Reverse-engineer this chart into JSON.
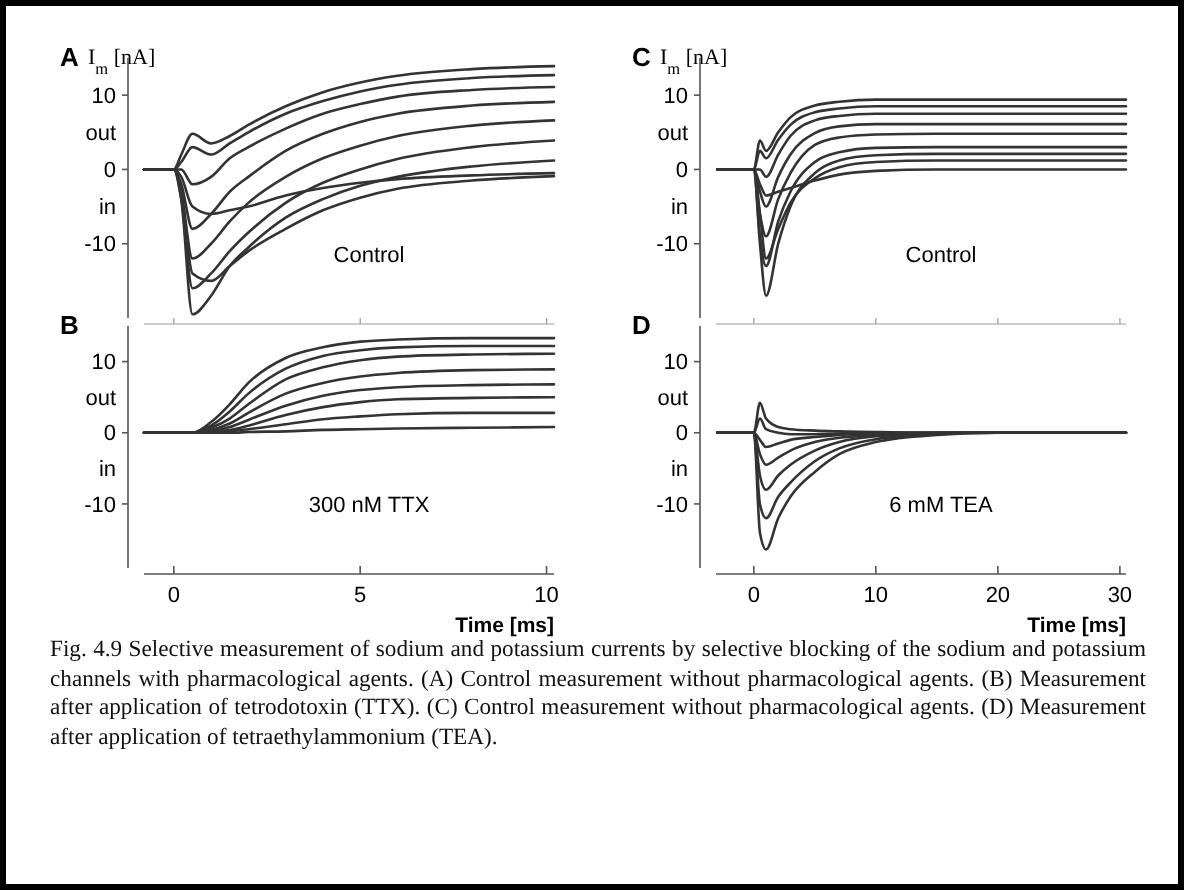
{
  "chart_data": [
    {
      "type": "line",
      "title": "A",
      "ylabel": "I$_{m}$ [nA]",
      "annotations": [
        "Control",
        "out",
        "in"
      ],
      "tick_labels": "y",
      "xlim": [
        -0.8,
        10.2
      ],
      "xticks": [
        0,
        5,
        10
      ],
      "ylim": [
        -20,
        15
      ],
      "yticks": [
        -10,
        0,
        10
      ],
      "x": [
        -0.8,
        0,
        0.2,
        0.5,
        1,
        1.5,
        2,
        3,
        4,
        5,
        6,
        8,
        10.2
      ],
      "series": [
        {
          "color": "#333333",
          "values": [
            0,
            0,
            2,
            4.8,
            3.5,
            4.5,
            6,
            8.5,
            10.4,
            11.7,
            12.6,
            13.5,
            13.9
          ]
        },
        {
          "color": "#333333",
          "values": [
            0,
            0,
            1,
            3,
            2,
            3.5,
            5,
            7.5,
            9.2,
            10.5,
            11.4,
            12.3,
            12.7
          ]
        },
        {
          "color": "#333333",
          "values": [
            0,
            0,
            0,
            -2,
            -1,
            1.5,
            3,
            5.5,
            7.5,
            8.8,
            9.8,
            10.7,
            11.1
          ]
        },
        {
          "color": "#333333",
          "values": [
            0,
            0,
            -2,
            -8,
            -6,
            -3,
            -1,
            2.5,
            4.8,
            6.4,
            7.5,
            8.6,
            9.1
          ]
        },
        {
          "color": "#333333",
          "values": [
            0,
            0,
            -3,
            -12,
            -10,
            -7,
            -4.5,
            -1,
            1.5,
            3.2,
            4.5,
            5.9,
            6.6
          ]
        },
        {
          "color": "#333333",
          "values": [
            0,
            0,
            -4,
            -16,
            -14,
            -11,
            -8.5,
            -4.5,
            -1.8,
            0,
            1.4,
            3,
            3.9
          ]
        },
        {
          "color": "#333333",
          "values": [
            0,
            0,
            -4,
            -19.5,
            -17,
            -13,
            -10.5,
            -6.5,
            -4,
            -2.2,
            -1,
            0.4,
            1.2
          ]
        },
        {
          "color": "#333333",
          "values": [
            0,
            0,
            -3,
            -14,
            -15,
            -13,
            -11,
            -8,
            -5.5,
            -3.8,
            -2.6,
            -1.5,
            -0.9
          ]
        },
        {
          "color": "#333333",
          "values": [
            0,
            0,
            -1,
            -5,
            -6,
            -5.5,
            -5,
            -3.5,
            -2.5,
            -1.8,
            -1.3,
            -0.8,
            -0.5
          ]
        }
      ]
    },
    {
      "type": "line",
      "title": "B",
      "xlabel": "Time [ms]",
      "annotations": [
        "300 nM TTX",
        "out",
        "in"
      ],
      "xlim": [
        -0.8,
        10.2
      ],
      "xticks": [
        0,
        5,
        10
      ],
      "ylim": [
        -19,
        15
      ],
      "yticks": [
        -10,
        0,
        10
      ],
      "x": [
        -0.8,
        0,
        0.5,
        1,
        1.5,
        2,
        3,
        4,
        5,
        6,
        8,
        10.2
      ],
      "series": [
        {
          "color": "#333333",
          "values": [
            0,
            0,
            0,
            1.5,
            4,
            7,
            10.5,
            12,
            12.8,
            13.1,
            13.3,
            13.3
          ]
        },
        {
          "color": "#333333",
          "values": [
            0,
            0,
            0,
            1,
            3,
            5.5,
            9,
            10.8,
            11.6,
            12,
            12.2,
            12.2
          ]
        },
        {
          "color": "#333333",
          "values": [
            0,
            0,
            0,
            0.7,
            2,
            4,
            7.5,
            9.2,
            10.2,
            10.7,
            11,
            11.1
          ]
        },
        {
          "color": "#333333",
          "values": [
            0,
            0,
            0,
            0.4,
            1.3,
            2.8,
            5.5,
            7,
            7.9,
            8.4,
            8.8,
            8.9
          ]
        },
        {
          "color": "#333333",
          "values": [
            0,
            0,
            0,
            0.2,
            0.8,
            1.8,
            3.8,
            5.2,
            6,
            6.4,
            6.7,
            6.8
          ]
        },
        {
          "color": "#333333",
          "values": [
            0,
            0,
            0,
            0.1,
            0.4,
            1,
            2.5,
            3.6,
            4.3,
            4.7,
            4.9,
            5
          ]
        },
        {
          "color": "#333333",
          "values": [
            0,
            0,
            0,
            0,
            0.2,
            0.5,
            1.2,
            1.9,
            2.3,
            2.6,
            2.8,
            2.8
          ]
        },
        {
          "color": "#333333",
          "values": [
            0,
            0,
            0,
            0,
            0,
            0.1,
            0.2,
            0.4,
            0.5,
            0.6,
            0.7,
            0.8
          ]
        }
      ]
    },
    {
      "type": "line",
      "title": "C",
      "ylabel": "I$_{m}$ [nA]",
      "annotations": [
        "Control",
        "out",
        "in"
      ],
      "tick_labels": "y",
      "xlim": [
        -3.1,
        30.5
      ],
      "xticks": [
        0,
        10,
        20,
        30
      ],
      "ylim": [
        -20,
        15
      ],
      "yticks": [
        -10,
        0,
        10
      ],
      "x": [
        -3,
        0,
        0.5,
        1,
        2,
        3,
        5,
        7,
        10,
        15,
        20,
        30.5
      ],
      "series": [
        {
          "color": "#333333",
          "values": [
            0,
            0,
            3.9,
            2.5,
            5,
            7,
            8.6,
            9.1,
            9.4,
            9.4,
            9.4,
            9.4
          ]
        },
        {
          "color": "#333333",
          "values": [
            0,
            0,
            2.5,
            1.5,
            4,
            6,
            7.7,
            8.2,
            8.5,
            8.5,
            8.5,
            8.5
          ]
        },
        {
          "color": "#333333",
          "values": [
            0,
            0,
            0,
            -1,
            2,
            4.5,
            6.6,
            7.2,
            7.5,
            7.5,
            7.5,
            7.5
          ]
        },
        {
          "color": "#333333",
          "values": [
            0,
            0,
            -3,
            -5,
            -1,
            2,
            4.9,
            5.8,
            6.1,
            6.1,
            6.1,
            6.1
          ]
        },
        {
          "color": "#333333",
          "values": [
            0,
            0,
            -6,
            -9,
            -4,
            -0.5,
            3.3,
            4.3,
            4.7,
            4.8,
            4.8,
            4.8
          ]
        },
        {
          "color": "#333333",
          "values": [
            0,
            0,
            -9,
            -13,
            -7,
            -3,
            1,
            2.3,
            2.9,
            3,
            3,
            3
          ]
        },
        {
          "color": "#333333",
          "values": [
            0,
            0,
            -10,
            -17,
            -10,
            -5,
            -0.5,
            1.2,
            1.9,
            2.1,
            2.1,
            2.1
          ]
        },
        {
          "color": "#333333",
          "values": [
            0,
            0,
            -6,
            -12,
            -8,
            -4.5,
            -1.2,
            0.3,
            1,
            1.2,
            1.2,
            1.2
          ]
        },
        {
          "color": "#333333",
          "values": [
            0,
            0,
            -2,
            -3.5,
            -3,
            -2.5,
            -1.5,
            -0.7,
            -0.2,
            0,
            0,
            0
          ]
        }
      ]
    },
    {
      "type": "line",
      "title": "D",
      "xlabel": "Time [ms]",
      "annotations": [
        "6 mM TEA",
        "out",
        "in"
      ],
      "xlim": [
        -3.1,
        30.5
      ],
      "xticks": [
        0,
        10,
        20,
        30
      ],
      "ylim": [
        -19,
        15
      ],
      "yticks": [
        -10,
        0,
        10
      ],
      "x": [
        -3,
        0,
        0.5,
        1,
        2,
        3,
        5,
        7,
        10,
        15,
        20,
        30.5
      ],
      "series": [
        {
          "color": "#333333",
          "values": [
            0,
            0,
            4.2,
            2,
            0.8,
            0.5,
            0.3,
            0.2,
            0.1,
            0,
            0,
            0
          ]
        },
        {
          "color": "#333333",
          "values": [
            0,
            0,
            2,
            0.5,
            0,
            -0.2,
            -0.2,
            -0.1,
            0,
            0,
            0,
            0
          ]
        },
        {
          "color": "#333333",
          "values": [
            0,
            0,
            -1,
            -2,
            -1.5,
            -1,
            -0.6,
            -0.3,
            -0.1,
            0,
            0,
            0
          ]
        },
        {
          "color": "#333333",
          "values": [
            0,
            0,
            -3,
            -4.5,
            -3.5,
            -2.5,
            -1.3,
            -0.7,
            -0.3,
            0,
            0,
            0
          ]
        },
        {
          "color": "#333333",
          "values": [
            0,
            0,
            -6,
            -8,
            -6,
            -4.5,
            -2.5,
            -1.3,
            -0.5,
            -0.1,
            0,
            0
          ]
        },
        {
          "color": "#333333",
          "values": [
            0,
            0,
            -10,
            -12,
            -9,
            -7,
            -4,
            -2.2,
            -0.9,
            -0.2,
            0,
            0
          ]
        },
        {
          "color": "#333333",
          "values": [
            0,
            0,
            -14,
            -16.4,
            -12,
            -9,
            -5.5,
            -3,
            -1.3,
            -0.3,
            0,
            0
          ]
        }
      ]
    },
    {
      "type": "other",
      "annotations": [
        "Fig. 4.9 Selective measurement of sodium and potassium currents by selective blocking of the sodium and potassium channels with pharmacological agents. (A) Control measurement without pharmacological agents. (B) Measurement after application of tetrodotoxin (TTX). (C) Control measurement without pharmacological agents. (D) Measurement after application of tetraethylammonium (TEA)."
      ]
    }
  ]
}
